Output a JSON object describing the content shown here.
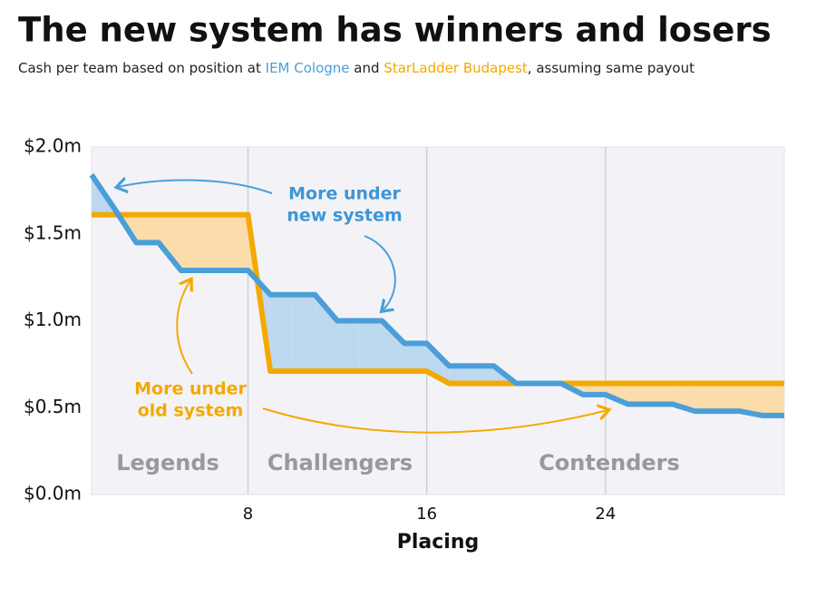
{
  "chart_data": {
    "type": "line",
    "title": "The new system has winners and losers",
    "subtitle": [
      "Cash per team based on position at ",
      " and ",
      ", assuming same payout"
    ],
    "x_label": "Placing",
    "x": [
      1,
      2,
      3,
      4,
      5,
      6,
      7,
      8,
      9,
      10,
      11,
      12,
      13,
      14,
      15,
      16,
      17,
      18,
      19,
      20,
      21,
      22,
      23,
      24,
      25,
      26,
      27,
      28,
      29,
      30,
      31,
      32
    ],
    "series": [
      {
        "name": "IEM Cologne",
        "color": "#4a9fd8",
        "values": [
          1.84,
          1.65,
          1.45,
          1.45,
          1.29,
          1.29,
          1.29,
          1.29,
          1.15,
          1.15,
          1.15,
          1.0,
          1.0,
          1.0,
          0.87,
          0.87,
          0.74,
          0.74,
          0.74,
          0.64,
          0.64,
          0.64,
          0.575,
          0.575,
          0.52,
          0.52,
          0.52,
          0.48,
          0.48,
          0.48,
          0.455,
          0.455
        ]
      },
      {
        "name": "StarLadder Budapest",
        "color": "#f5a800",
        "values": [
          1.61,
          1.61,
          1.61,
          1.61,
          1.61,
          1.61,
          1.61,
          1.61,
          0.71,
          0.71,
          0.71,
          0.71,
          0.71,
          0.71,
          0.71,
          0.71,
          0.64,
          0.64,
          0.64,
          0.64,
          0.64,
          0.64,
          0.64,
          0.64,
          0.64,
          0.64,
          0.64,
          0.64,
          0.64,
          0.64,
          0.64,
          0.64
        ]
      }
    ],
    "xlim": [
      1,
      32
    ],
    "xticks": [
      8,
      16,
      24
    ],
    "ylim": [
      0,
      2
    ],
    "yticks": [
      {
        "value": 0,
        "label": "$0.0m"
      },
      {
        "value": 0.5,
        "label": "$0.5m"
      },
      {
        "value": 1,
        "label": "$1.0m"
      },
      {
        "value": 1.5,
        "label": "$1.5m"
      },
      {
        "value": 2,
        "label": "$2.0m"
      }
    ],
    "regions": [
      "Legends",
      "Challengers",
      "Contenders"
    ],
    "annotations": [
      [
        "More under",
        "new system"
      ],
      [
        "More under",
        "old system"
      ]
    ],
    "grid": true
  }
}
